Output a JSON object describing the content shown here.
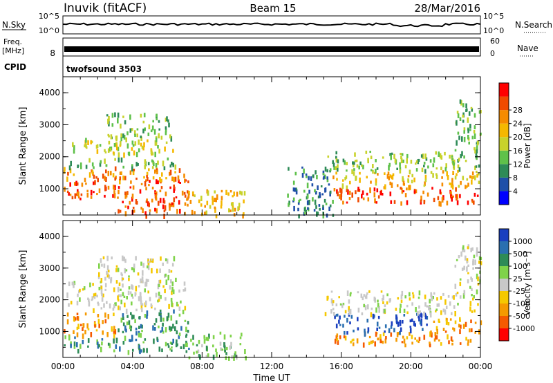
{
  "header": {
    "station": "Inuvik (fitACF)",
    "beam": "Beam 15",
    "date": "28/Mar/2016"
  },
  "panels": {
    "nsky": {
      "label": "N.Sky",
      "tick_top": "10^5",
      "tick_bottom": "10^0",
      "right_label": "N.Search",
      "right_tick_top": "10^5",
      "right_tick_bottom": "10^0"
    },
    "freq": {
      "label_top": "Freq.",
      "label_bottom": "[MHz]",
      "left_tick": "8",
      "right_label": "Nave",
      "right_tick_top": "60",
      "right_tick_bottom": "0"
    },
    "cpid": {
      "label": "CPID",
      "program": "twofsound 3503"
    }
  },
  "colors": {
    "power_scale": [
      "#0000ff",
      "#1f4fa8",
      "#2e8b57",
      "#5fc14a",
      "#c8d22b",
      "#f5b800",
      "#f58b00",
      "#f04a00",
      "#ff0000"
    ],
    "velocity_scale": [
      "#ff0000",
      "#f55a00",
      "#f59a00",
      "#f5c800",
      "#c8c8c8",
      "#7fd34a",
      "#2e8b57",
      "#2a6fb0",
      "#1a3fbf"
    ]
  },
  "chart_data": [
    {
      "type": "heatmap",
      "name": "power",
      "ylabel": "Slant Range [km]",
      "colorbar_label": "Power [dB]",
      "colorbar_ticks": [
        "4",
        "8",
        "12",
        "16",
        "20",
        "24",
        "28"
      ],
      "xlim": [
        "00:00",
        "24:00"
      ],
      "ylim": [
        180,
        4500
      ],
      "yticks": [
        "1000",
        "2000",
        "3000",
        "4000"
      ],
      "regions": [
        {
          "t0": 0.0,
          "t1": 7.2,
          "r0": 700,
          "r1": 1300,
          "v": 28
        },
        {
          "t0": 0.0,
          "t1": 7.2,
          "r0": 1300,
          "r1": 1700,
          "v": 22
        },
        {
          "t0": 0.2,
          "t1": 6.8,
          "r0": 1700,
          "r1": 2000,
          "v": 12
        },
        {
          "t0": 0.5,
          "t1": 6.5,
          "r0": 2100,
          "r1": 2600,
          "v": 16
        },
        {
          "t0": 2.5,
          "t1": 6.2,
          "r0": 2600,
          "r1": 3400,
          "v": 10
        },
        {
          "t0": 3.0,
          "t1": 7.0,
          "r0": 200,
          "r1": 700,
          "v": 26
        },
        {
          "t0": 7.0,
          "t1": 10.5,
          "r0": 200,
          "r1": 1000,
          "v": 18
        },
        {
          "t0": 12.8,
          "t1": 15.5,
          "r0": 200,
          "r1": 1700,
          "v": 8
        },
        {
          "t0": 15.5,
          "t1": 24.0,
          "r0": 600,
          "r1": 1100,
          "v": 28
        },
        {
          "t0": 15.5,
          "t1": 24.0,
          "r0": 1100,
          "r1": 1600,
          "v": 20
        },
        {
          "t0": 15.0,
          "t1": 24.0,
          "r0": 1600,
          "r1": 2200,
          "v": 10
        },
        {
          "t0": 22.5,
          "t1": 24.0,
          "r0": 2200,
          "r1": 3800,
          "v": 12
        }
      ]
    },
    {
      "type": "heatmap",
      "name": "velocity",
      "ylabel": "Slant Range [km]",
      "xlabel": "Time UT",
      "colorbar_label": "Velocity [m s⁻¹]",
      "colorbar_ticks": [
        "-1000",
        "-500",
        "-100",
        "-25",
        "25",
        "100",
        "500",
        "1000"
      ],
      "xlim": [
        "00:00",
        "24:00"
      ],
      "xticks": [
        "00:00",
        "04:00",
        "08:00",
        "12:00",
        "16:00",
        "20:00",
        "00:00"
      ],
      "ylim": [
        180,
        4500
      ],
      "yticks": [
        "1000",
        "2000",
        "3000",
        "4000"
      ],
      "regions": [
        {
          "t0": 0.0,
          "t1": 3.0,
          "r0": 900,
          "r1": 1600,
          "v": -300
        },
        {
          "t0": 0.0,
          "t1": 7.2,
          "r0": 400,
          "r1": 900,
          "v": 300
        },
        {
          "t0": 3.0,
          "t1": 7.2,
          "r0": 900,
          "r1": 1700,
          "v": 400
        },
        {
          "t0": 0.2,
          "t1": 7.0,
          "r0": 1700,
          "r1": 2600,
          "v": 20
        },
        {
          "t0": 2.0,
          "t1": 6.5,
          "r0": 2600,
          "r1": 3400,
          "v": 20
        },
        {
          "t0": 7.0,
          "t1": 10.5,
          "r0": 200,
          "r1": 1000,
          "v": 60
        },
        {
          "t0": 15.5,
          "t1": 24.0,
          "r0": 600,
          "r1": 1000,
          "v": -300
        },
        {
          "t0": 15.5,
          "t1": 21.0,
          "r0": 1000,
          "r1": 1600,
          "v": 1000
        },
        {
          "t0": 21.0,
          "t1": 24.0,
          "r0": 1000,
          "r1": 1500,
          "v": -200
        },
        {
          "t0": 15.0,
          "t1": 24.0,
          "r0": 1600,
          "r1": 2300,
          "v": 0
        },
        {
          "t0": 22.5,
          "t1": 24.0,
          "r0": 2300,
          "r1": 3800,
          "v": 20
        }
      ]
    }
  ]
}
